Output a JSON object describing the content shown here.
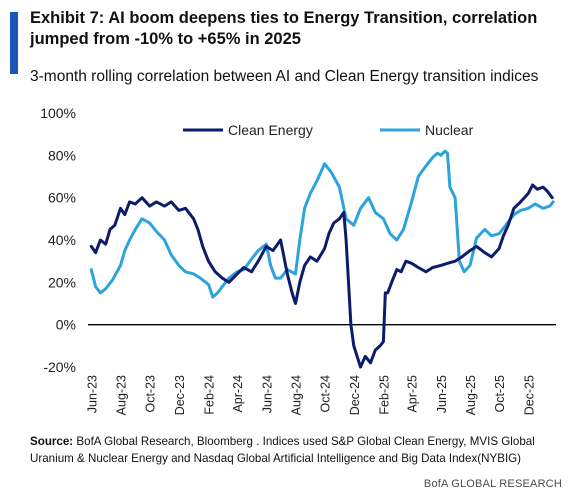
{
  "header": {
    "title": "Exhibit 7: AI boom deepens ties to Energy Transition, correlation jumped from -10% to +65% in 2025",
    "subtitle": "3-month rolling correlation between AI and Clean Energy transition indices"
  },
  "footer": {
    "source_label": "Source:",
    "source_text": " BofA Global Research, Bloomberg . Indices used S&P Global Clean Energy, MVIS Global Uranium & Nuclear Energy and Nasdaq Global Artificial Intelligence and Big Data Index(NYBIG)",
    "brand": "BofA GLOBAL RESEARCH"
  },
  "colors": {
    "accent": "#1a56b8",
    "clean_energy": "#0d1b6b",
    "nuclear": "#2ca3dc",
    "zero_line": "#000000"
  },
  "chart_data": {
    "type": "line",
    "title": "",
    "xlabel": "",
    "ylabel": "",
    "x_tick_labels": [
      "Jun-23",
      "Aug-23",
      "Oct-23",
      "Dec-23",
      "Feb-24",
      "Apr-24",
      "Jun-24",
      "Aug-24",
      "Oct-24",
      "Dec-24",
      "Feb-25",
      "Apr-25",
      "Jun-25",
      "Aug-25",
      "Oct-25",
      "Dec-25"
    ],
    "y_tick_labels": [
      "100%",
      "80%",
      "60%",
      "40%",
      "20%",
      "0%",
      "-20%"
    ],
    "ylim": [
      -20,
      100
    ],
    "y_ticks": [
      100,
      80,
      60,
      40,
      20,
      0,
      -20
    ],
    "grid": false,
    "reference_line": 0,
    "legend_position": "top",
    "series": [
      {
        "name": "Clean Energy",
        "points": [
          [
            "2023-06-01",
            37
          ],
          [
            "2023-06-10",
            34
          ],
          [
            "2023-06-20",
            40
          ],
          [
            "2023-07-01",
            38
          ],
          [
            "2023-07-10",
            45
          ],
          [
            "2023-07-20",
            47
          ],
          [
            "2023-08-01",
            55
          ],
          [
            "2023-08-10",
            52
          ],
          [
            "2023-08-20",
            58
          ],
          [
            "2023-09-01",
            57
          ],
          [
            "2023-09-15",
            60
          ],
          [
            "2023-10-01",
            56
          ],
          [
            "2023-10-15",
            58
          ],
          [
            "2023-11-01",
            56
          ],
          [
            "2023-11-15",
            58
          ],
          [
            "2023-12-01",
            54
          ],
          [
            "2023-12-15",
            55
          ],
          [
            "2024-01-01",
            50
          ],
          [
            "2024-01-10",
            45
          ],
          [
            "2024-01-20",
            37
          ],
          [
            "2024-02-01",
            30
          ],
          [
            "2024-02-15",
            25
          ],
          [
            "2024-03-01",
            22
          ],
          [
            "2024-03-15",
            20
          ],
          [
            "2024-04-01",
            24
          ],
          [
            "2024-04-15",
            27
          ],
          [
            "2024-05-01",
            25
          ],
          [
            "2024-05-15",
            30
          ],
          [
            "2024-06-01",
            37
          ],
          [
            "2024-06-15",
            35
          ],
          [
            "2024-07-01",
            40
          ],
          [
            "2024-07-15",
            24
          ],
          [
            "2024-07-25",
            15
          ],
          [
            "2024-08-01",
            10
          ],
          [
            "2024-08-10",
            20
          ],
          [
            "2024-08-20",
            28
          ],
          [
            "2024-09-01",
            32
          ],
          [
            "2024-09-15",
            30
          ],
          [
            "2024-10-01",
            36
          ],
          [
            "2024-10-10",
            43
          ],
          [
            "2024-10-20",
            48
          ],
          [
            "2024-11-01",
            50
          ],
          [
            "2024-11-10",
            53
          ],
          [
            "2024-11-15",
            40
          ],
          [
            "2024-11-20",
            20
          ],
          [
            "2024-11-25",
            0
          ],
          [
            "2024-12-01",
            -10
          ],
          [
            "2024-12-15",
            -20
          ],
          [
            "2024-12-25",
            -15
          ],
          [
            "2025-01-05",
            -18
          ],
          [
            "2025-01-15",
            -12
          ],
          [
            "2025-01-25",
            -10
          ],
          [
            "2025-02-01",
            -8
          ],
          [
            "2025-02-05",
            15
          ],
          [
            "2025-02-10",
            15
          ],
          [
            "2025-02-20",
            21
          ],
          [
            "2025-03-01",
            26
          ],
          [
            "2025-03-10",
            25
          ],
          [
            "2025-03-20",
            30
          ],
          [
            "2025-04-01",
            29
          ],
          [
            "2025-04-15",
            27
          ],
          [
            "2025-05-01",
            25
          ],
          [
            "2025-05-15",
            27
          ],
          [
            "2025-06-01",
            28
          ],
          [
            "2025-06-15",
            29
          ],
          [
            "2025-07-01",
            30
          ],
          [
            "2025-07-15",
            32
          ],
          [
            "2025-08-01",
            35
          ],
          [
            "2025-08-15",
            37
          ],
          [
            "2025-09-01",
            34
          ],
          [
            "2025-09-15",
            32
          ],
          [
            "2025-10-01",
            36
          ],
          [
            "2025-10-10",
            42
          ],
          [
            "2025-10-20",
            47
          ],
          [
            "2025-11-01",
            55
          ],
          [
            "2025-11-15",
            58
          ],
          [
            "2025-12-01",
            62
          ],
          [
            "2025-12-10",
            66
          ],
          [
            "2025-12-20",
            64
          ],
          [
            "2026-01-01",
            65
          ],
          [
            "2026-01-10",
            63
          ],
          [
            "2026-01-20",
            60
          ]
        ]
      },
      {
        "name": "Nuclear",
        "points": [
          [
            "2023-06-01",
            26
          ],
          [
            "2023-06-10",
            18
          ],
          [
            "2023-06-20",
            15
          ],
          [
            "2023-07-01",
            17
          ],
          [
            "2023-07-15",
            21
          ],
          [
            "2023-08-01",
            28
          ],
          [
            "2023-08-10",
            35
          ],
          [
            "2023-08-20",
            40
          ],
          [
            "2023-09-01",
            45
          ],
          [
            "2023-09-15",
            50
          ],
          [
            "2023-10-01",
            48
          ],
          [
            "2023-10-15",
            44
          ],
          [
            "2023-11-01",
            40
          ],
          [
            "2023-11-15",
            33
          ],
          [
            "2023-12-01",
            28
          ],
          [
            "2023-12-15",
            25
          ],
          [
            "2024-01-01",
            24
          ],
          [
            "2024-01-15",
            22
          ],
          [
            "2024-02-01",
            19
          ],
          [
            "2024-02-10",
            13
          ],
          [
            "2024-02-20",
            15
          ],
          [
            "2024-03-01",
            18
          ],
          [
            "2024-03-15",
            22
          ],
          [
            "2024-04-01",
            25
          ],
          [
            "2024-04-15",
            26
          ],
          [
            "2024-05-01",
            31
          ],
          [
            "2024-05-15",
            35
          ],
          [
            "2024-06-01",
            38
          ],
          [
            "2024-06-10",
            28
          ],
          [
            "2024-06-20",
            22
          ],
          [
            "2024-07-01",
            22
          ],
          [
            "2024-07-15",
            26
          ],
          [
            "2024-08-01",
            24
          ],
          [
            "2024-08-10",
            40
          ],
          [
            "2024-08-20",
            55
          ],
          [
            "2024-09-01",
            62
          ],
          [
            "2024-09-15",
            68
          ],
          [
            "2024-10-01",
            76
          ],
          [
            "2024-10-15",
            72
          ],
          [
            "2024-11-01",
            65
          ],
          [
            "2024-11-15",
            50
          ],
          [
            "2024-12-01",
            47
          ],
          [
            "2024-12-15",
            55
          ],
          [
            "2025-01-01",
            60
          ],
          [
            "2025-01-15",
            53
          ],
          [
            "2025-02-01",
            50
          ],
          [
            "2025-02-15",
            43
          ],
          [
            "2025-03-01",
            40
          ],
          [
            "2025-03-15",
            45
          ],
          [
            "2025-04-01",
            58
          ],
          [
            "2025-04-15",
            70
          ],
          [
            "2025-05-01",
            75
          ],
          [
            "2025-05-15",
            79
          ],
          [
            "2025-05-25",
            81
          ],
          [
            "2025-06-01",
            80
          ],
          [
            "2025-06-10",
            82
          ],
          [
            "2025-06-15",
            81
          ],
          [
            "2025-06-20",
            65
          ],
          [
            "2025-07-01",
            60
          ],
          [
            "2025-07-10",
            30
          ],
          [
            "2025-07-20",
            25
          ],
          [
            "2025-08-01",
            28
          ],
          [
            "2025-08-15",
            41
          ],
          [
            "2025-09-01",
            45
          ],
          [
            "2025-09-15",
            42
          ],
          [
            "2025-10-01",
            43
          ],
          [
            "2025-10-15",
            47
          ],
          [
            "2025-11-01",
            52
          ],
          [
            "2025-11-15",
            54
          ],
          [
            "2025-12-01",
            55
          ],
          [
            "2025-12-15",
            57
          ],
          [
            "2026-01-01",
            55
          ],
          [
            "2026-01-15",
            56
          ],
          [
            "2026-01-22",
            58
          ]
        ]
      }
    ]
  }
}
